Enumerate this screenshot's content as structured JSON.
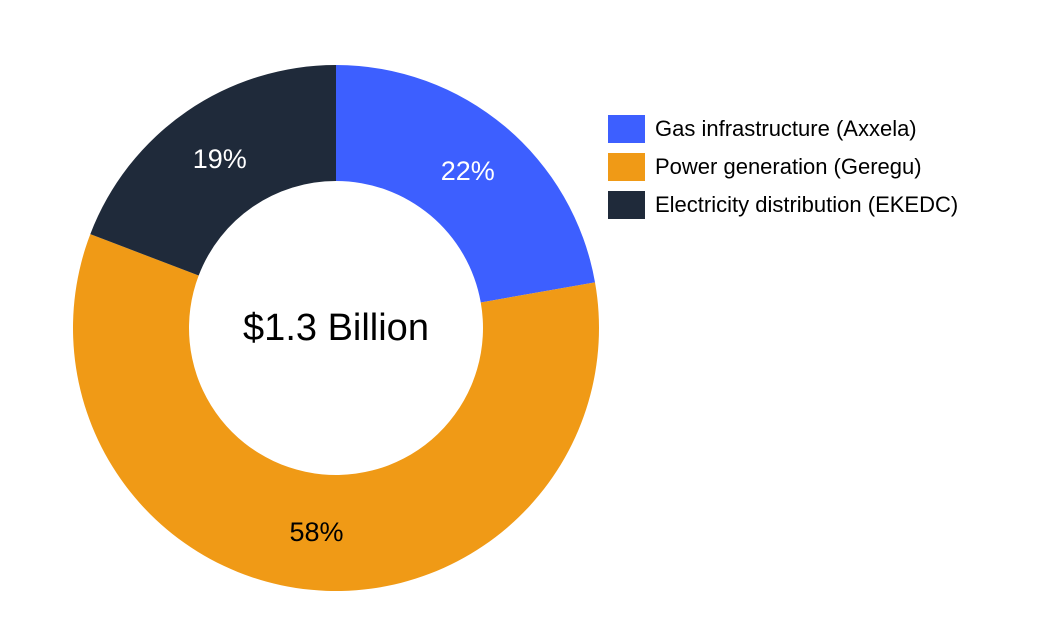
{
  "chart_data": {
    "type": "pie",
    "donut": true,
    "center_label": "$1.3 Billion",
    "categories": [
      "Gas infrastructure (Axxela)",
      "Power generation (Geregu)",
      "Electricity distribution (EKEDC)"
    ],
    "values": [
      22,
      58,
      19
    ],
    "data_labels": [
      "22%",
      "58%",
      "19%"
    ],
    "colors": [
      "#3D5FFF",
      "#F09A16",
      "#1F2A3A"
    ],
    "label_colors": [
      "#FFFFFF",
      "#000000",
      "#FFFFFF"
    ],
    "legend_position": "right"
  }
}
